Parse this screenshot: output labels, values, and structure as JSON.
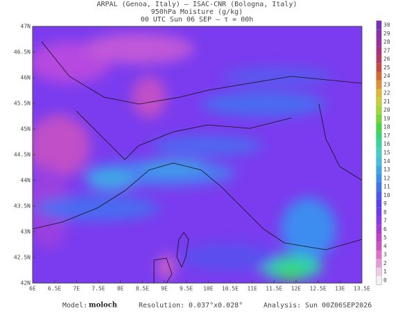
{
  "header": {
    "line1": "ARPAL (Genoa, Italy)  –  ISAC-CNR (Bologna, Italy)",
    "line2": "950hPa Moisture (g/kg)",
    "line3": "00 UTC Sun 06 SEP  –  τ = 00h"
  },
  "lat_labels": [
    "47N",
    "46.5N",
    "46N",
    "45.5N",
    "45N",
    "44.5N",
    "44N",
    "43.5N",
    "43N",
    "42.5N",
    "42N"
  ],
  "lon_labels": [
    "6E",
    "6.5E",
    "7E",
    "7.5E",
    "8E",
    "8.5E",
    "9E",
    "9.5E",
    "10E",
    "10.5E",
    "11E",
    "11.5E",
    "12E",
    "12.5E",
    "13E",
    "13.5E"
  ],
  "colorbar": {
    "levels": [
      0,
      1,
      2,
      3,
      4,
      5,
      6,
      7,
      8,
      9,
      10,
      11,
      12,
      13,
      14,
      15,
      16,
      17,
      18,
      19,
      20,
      21,
      22,
      23,
      24,
      25,
      26,
      27,
      28,
      29,
      30
    ],
    "colors": [
      "#f6f0f6",
      "#f0c8e8",
      "#e89ad8",
      "#e070c8",
      "#d050c0",
      "#c040c8",
      "#a838d8",
      "#8c38e8",
      "#7038f0",
      "#5a40f0",
      "#4858f0",
      "#3c74f0",
      "#3a90f0",
      "#38a8e8",
      "#40c0e0",
      "#40d0c8",
      "#30d8a0",
      "#30d870",
      "#40d840",
      "#70d830",
      "#a0d830",
      "#c8d030",
      "#e0b830",
      "#e09030",
      "#d86830",
      "#c84840",
      "#b83860",
      "#a83080",
      "#9830a0",
      "#8830b0",
      "#7830b8"
    ]
  },
  "footer": {
    "model_label": "Model:",
    "model": "moloch",
    "res_label": "Resolution:",
    "res": "0.037°x0.028°",
    "analysis_label": "Analysis:",
    "analysis": "Sun 00Z06SEP2026"
  }
}
